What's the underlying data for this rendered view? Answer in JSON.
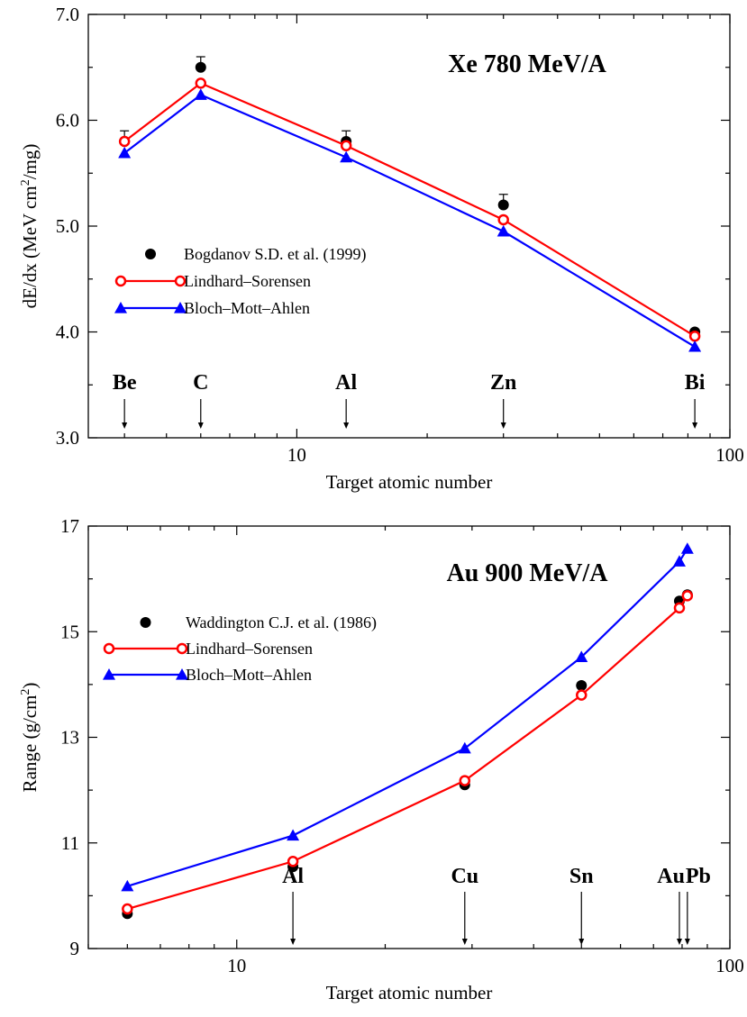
{
  "chart_data": [
    {
      "type": "line",
      "title": "Xe 780 MeV/A",
      "xlabel": "Target atomic number",
      "ylabel": "dE/dx (MeV cm2/mg)",
      "ylabel_main": "dE/dx (MeV cm",
      "ylabel_sup": "2",
      "ylabel_tail": "/mg)",
      "xscale": "log",
      "xlim": [
        3.3,
        100
      ],
      "ylim": [
        3.0,
        7.0
      ],
      "xticks": [
        {
          "value": 10,
          "label": "10"
        },
        {
          "value": 100,
          "label": "100"
        }
      ],
      "yticks": [
        {
          "value": 3.0,
          "label": "3.0"
        },
        {
          "value": 4.0,
          "label": "4.0"
        },
        {
          "value": 5.0,
          "label": "5.0"
        },
        {
          "value": 6.0,
          "label": "6.0"
        },
        {
          "value": 7.0,
          "label": "7.0"
        }
      ],
      "legend_position": "left",
      "series": [
        {
          "name": "Bogdanov S.D. et al. (1999)",
          "kind": "points",
          "marker": "filled-circle",
          "color": "#000000",
          "x": [
            4,
            6,
            13,
            30,
            83
          ],
          "y": [
            5.8,
            6.5,
            5.8,
            5.2,
            4.0
          ],
          "err": [
            0.1,
            0.1,
            0.1,
            0.1,
            0.0
          ]
        },
        {
          "name": "Lindhard–Sorensen",
          "kind": "line",
          "marker": "open-circle",
          "color": "#ff0000",
          "x": [
            4,
            6,
            13,
            30,
            83
          ],
          "y": [
            5.8,
            6.35,
            5.76,
            5.06,
            3.96
          ]
        },
        {
          "name": "Bloch–Mott–Ahlen",
          "kind": "line",
          "marker": "filled-triangle",
          "color": "#0000ff",
          "x": [
            4,
            6,
            13,
            30,
            83
          ],
          "y": [
            5.69,
            6.24,
            5.65,
            4.95,
            3.86
          ]
        }
      ],
      "annotations": [
        {
          "label": "Be",
          "x": 4
        },
        {
          "label": "C",
          "x": 6
        },
        {
          "label": "Al",
          "x": 13
        },
        {
          "label": "Zn",
          "x": 30
        },
        {
          "label": "Bi",
          "x": 83
        }
      ]
    },
    {
      "type": "line",
      "title": "Au 900 MeV/A",
      "xlabel": "Target atomic number",
      "ylabel": "Range (g/cm2)",
      "ylabel_main": "Range (g/cm",
      "ylabel_sup": "2",
      "ylabel_tail": ")",
      "xscale": "log",
      "xlim": [
        5,
        100
      ],
      "ylim": [
        9,
        17
      ],
      "xticks": [
        {
          "value": 10,
          "label": "10"
        },
        {
          "value": 100,
          "label": "100"
        }
      ],
      "yticks": [
        {
          "value": 9,
          "label": "9"
        },
        {
          "value": 11,
          "label": "11"
        },
        {
          "value": 13,
          "label": "13"
        },
        {
          "value": 15,
          "label": "15"
        },
        {
          "value": 17,
          "label": "17"
        }
      ],
      "legend_position": "top-left",
      "series": [
        {
          "name": "Waddington C.J. et al. (1986)",
          "kind": "points",
          "marker": "filled-circle",
          "color": "#000000",
          "x": [
            6,
            13,
            29,
            50,
            79,
            82
          ],
          "y": [
            9.66,
            10.55,
            12.1,
            13.98,
            15.58,
            15.7
          ]
        },
        {
          "name": "Lindhard–Sorensen",
          "kind": "line",
          "marker": "open-circle",
          "color": "#ff0000",
          "x": [
            6,
            13,
            29,
            50,
            79,
            82
          ],
          "y": [
            9.75,
            10.65,
            12.18,
            13.8,
            15.45,
            15.68
          ]
        },
        {
          "name": "Bloch–Mott–Ahlen",
          "kind": "line",
          "marker": "filled-triangle",
          "color": "#0000ff",
          "x": [
            6,
            13,
            29,
            50,
            79,
            82
          ],
          "y": [
            10.18,
            11.14,
            12.79,
            14.52,
            16.33,
            16.57
          ]
        }
      ],
      "annotations": [
        {
          "label": "Al",
          "x": 13
        },
        {
          "label": "Cu",
          "x": 29
        },
        {
          "label": "Sn",
          "x": 50
        },
        {
          "label": "Au",
          "x": 79
        },
        {
          "label": "Pb",
          "x": 82
        }
      ]
    }
  ]
}
